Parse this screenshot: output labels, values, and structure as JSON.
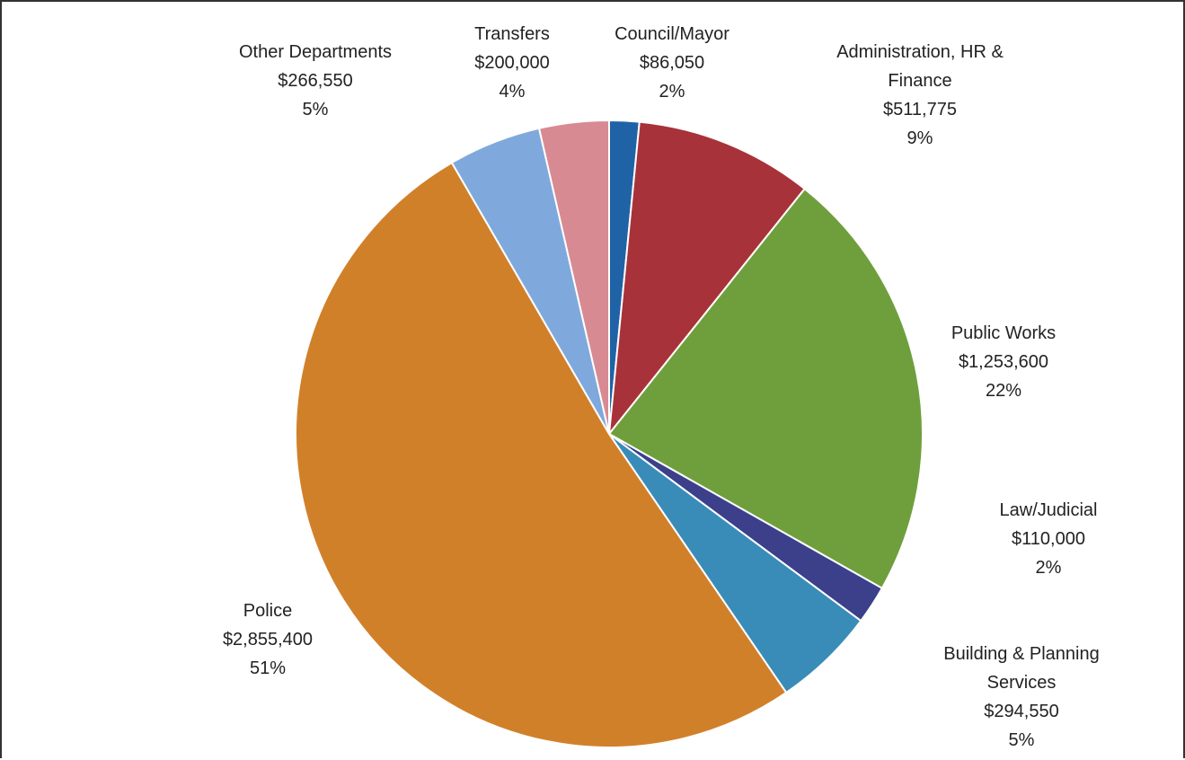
{
  "chart_data": {
    "type": "pie",
    "title": "",
    "start_angle_deg": 0,
    "direction": "clockwise",
    "slices": [
      {
        "name": "Council/Mayor",
        "value": 86050,
        "value_label": "$86,050",
        "percent_label": "2%",
        "color": "#1f63a6"
      },
      {
        "name": "Administration, HR & Finance",
        "value": 511775,
        "value_label": "$511,775",
        "percent_label": "9%",
        "color": "#a8323a"
      },
      {
        "name": "Public Works",
        "value": 1253600,
        "value_label": "$1,253,600",
        "percent_label": "22%",
        "color": "#6f9f3c"
      },
      {
        "name": "Law/Judicial",
        "value": 110000,
        "value_label": "$110,000",
        "percent_label": "2%",
        "color": "#3c3f8a"
      },
      {
        "name": "Building & Planning Services",
        "value": 294550,
        "value_label": "$294,550",
        "percent_label": "5%",
        "color": "#3a8cb8"
      },
      {
        "name": "Police",
        "value": 2855400,
        "value_label": "$2,855,400",
        "percent_label": "51%",
        "color": "#d1802a"
      },
      {
        "name": "Other Departments",
        "value": 266550,
        "value_label": "$266,550",
        "percent_label": "5%",
        "color": "#7fa9dc"
      },
      {
        "name": "Transfers",
        "value": 200000,
        "value_label": "$200,000",
        "percent_label": "4%",
        "color": "#d88a92"
      }
    ]
  }
}
